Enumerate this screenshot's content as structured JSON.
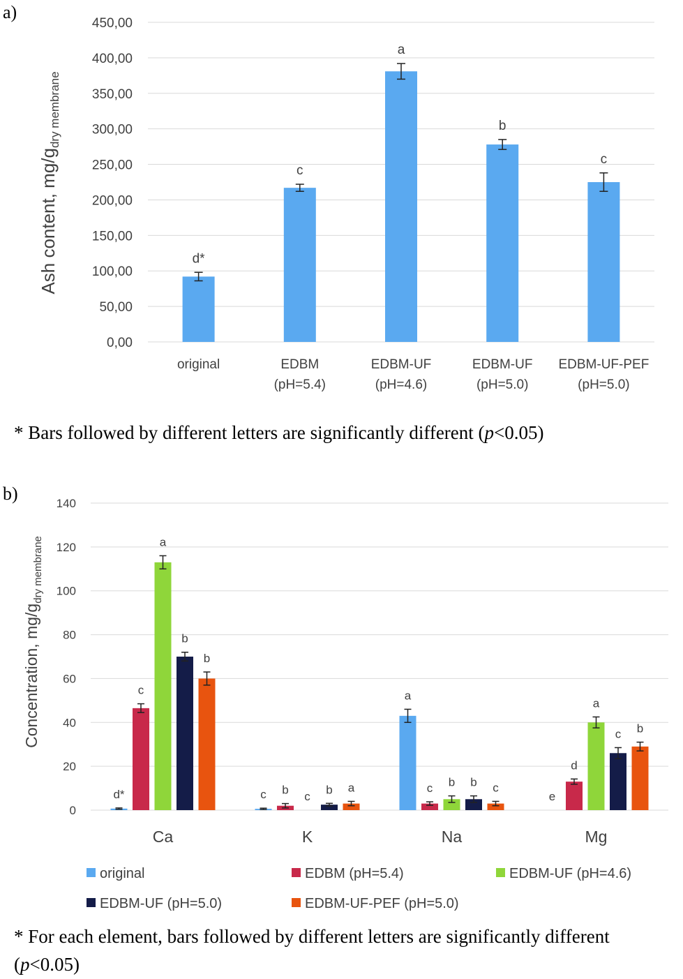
{
  "panel_a": {
    "label": "a)",
    "note_prefix": "* Bars followed by different letters are significantly different (",
    "note_p": "p",
    "note_suffix": "<0.05)"
  },
  "panel_b": {
    "label": "b)",
    "note_prefix": "* For each element, bars followed by different letters are significantly different",
    "note_open": "(",
    "note_p": "p",
    "note_suffix": "<0.05)"
  },
  "colors": {
    "original": "#5aa9f0",
    "edbm": "#c8294a",
    "edbm_uf_46": "#8fd63a",
    "edbm_uf_50": "#141c48",
    "edbm_uf_pef": "#e8540f",
    "grid": "#d9d9d9",
    "text": "#404040"
  },
  "chart_data": [
    {
      "type": "bar",
      "ylabel_main": "Ash content, mg/g",
      "ylabel_sub": "dry membrane",
      "ylim": [
        0,
        450
      ],
      "yticks": [
        "0,00",
        "50,00",
        "100,00",
        "150,00",
        "200,00",
        "250,00",
        "300,00",
        "350,00",
        "400,00",
        "450,00"
      ],
      "categories": [
        [
          "original"
        ],
        [
          "EDBM",
          "(pH=5.4)"
        ],
        [
          "EDBM-UF",
          "(pH=4.6)"
        ],
        [
          "EDBM-UF",
          "(pH=5.0)"
        ],
        [
          "EDBM-UF-PEF",
          "(pH=5.0)"
        ]
      ],
      "values": [
        92,
        217,
        381,
        278,
        225
      ],
      "errors": [
        6,
        5,
        11,
        7,
        13
      ],
      "letters": [
        "d*",
        "c",
        "a",
        "b",
        "c"
      ],
      "grid": true
    },
    {
      "type": "bar",
      "ylabel_main": "Concentration, mg/g",
      "ylabel_sub": "dry membrane",
      "ylim": [
        0,
        140
      ],
      "yticks": [
        "0",
        "20",
        "40",
        "60",
        "80",
        "100",
        "120",
        "140"
      ],
      "categories": [
        "Ca",
        "K",
        "Na",
        "Mg"
      ],
      "series": [
        {
          "name": "original",
          "values": [
            0.7,
            0.6,
            43,
            0
          ],
          "errors": [
            0.3,
            0.3,
            3,
            0
          ],
          "letters": [
            "d*",
            "c",
            "a",
            "e"
          ]
        },
        {
          "name": "EDBM (pH=5.4)",
          "values": [
            46.5,
            2,
            3,
            13
          ],
          "errors": [
            2,
            1,
            0.8,
            1.2
          ],
          "letters": [
            "c",
            "b",
            "c",
            "d"
          ]
        },
        {
          "name": "EDBM-UF (pH=4.6)",
          "values": [
            113,
            0,
            5,
            40
          ],
          "errors": [
            3,
            0,
            1.5,
            2.5
          ],
          "letters": [
            "a",
            "c",
            "b",
            "a"
          ]
        },
        {
          "name": "EDBM-UF (pH=5.0)",
          "values": [
            70,
            2.5,
            5,
            26
          ],
          "errors": [
            2,
            0.6,
            1.5,
            2.5
          ],
          "letters": [
            "b",
            "b",
            "b",
            "c"
          ]
        },
        {
          "name": "EDBM-UF-PEF (pH=5.0)",
          "values": [
            60,
            3,
            3,
            29
          ],
          "errors": [
            3,
            1,
            1,
            2
          ],
          "letters": [
            "b",
            "a",
            "c",
            "b"
          ]
        }
      ],
      "legend": "bottom",
      "grid": true
    }
  ]
}
